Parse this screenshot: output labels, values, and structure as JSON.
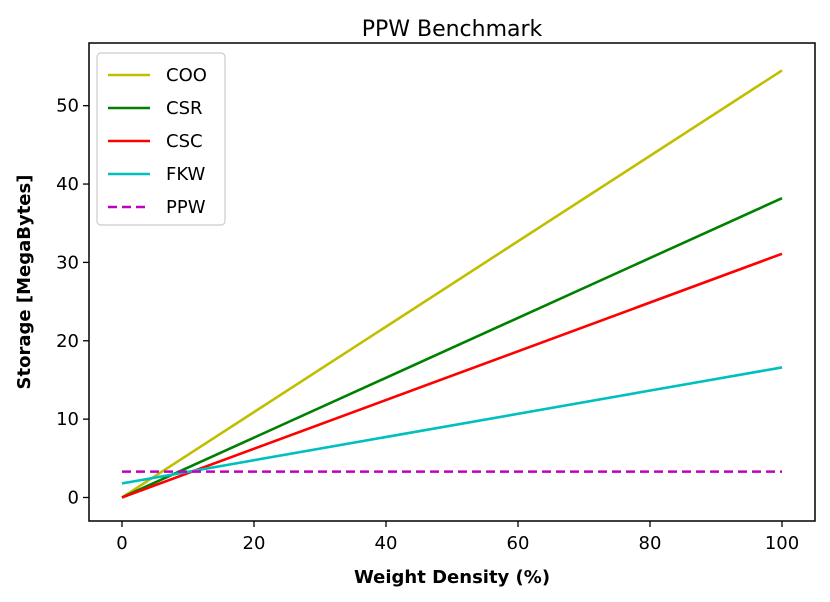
{
  "chart_data": {
    "type": "line",
    "title": "PPW Benchmark",
    "xlabel": "Weight Density (%)",
    "ylabel": "Storage [MegaBytes]",
    "xlim": [
      -5,
      105
    ],
    "ylim": [
      -3,
      58
    ],
    "xticks": [
      0,
      20,
      40,
      60,
      80,
      100
    ],
    "yticks": [
      0,
      10,
      20,
      30,
      40,
      50
    ],
    "grid": false,
    "legend_position": "top-left",
    "series": [
      {
        "name": "COO",
        "color": "#bfbf00",
        "dashed": false,
        "x": [
          0,
          100
        ],
        "y": [
          0,
          54.5
        ]
      },
      {
        "name": "CSR",
        "color": "#008000",
        "dashed": false,
        "x": [
          0,
          100
        ],
        "y": [
          0,
          38.2
        ]
      },
      {
        "name": "CSC",
        "color": "#ff0000",
        "dashed": false,
        "x": [
          0,
          100
        ],
        "y": [
          0,
          31.1
        ]
      },
      {
        "name": "FKW",
        "color": "#00bfbf",
        "dashed": false,
        "x": [
          0,
          100
        ],
        "y": [
          1.8,
          16.6
        ]
      },
      {
        "name": "PPW",
        "color": "#bf00bf",
        "dashed": true,
        "x": [
          0,
          100
        ],
        "y": [
          3.3,
          3.3
        ]
      }
    ]
  }
}
